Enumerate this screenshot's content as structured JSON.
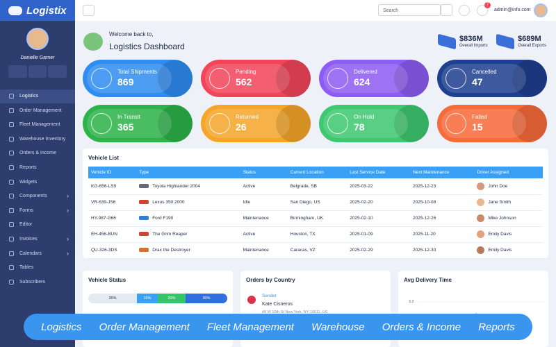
{
  "sidebar": {
    "brand": "Logistix",
    "user": "Danielle Garner",
    "menu": [
      {
        "label": "Logistics",
        "submenu": false
      },
      {
        "label": "Order Management",
        "submenu": false
      },
      {
        "label": "Fleet Management",
        "submenu": false
      },
      {
        "label": "Warehouse Inventory",
        "submenu": false
      },
      {
        "label": "Orders & Income",
        "submenu": false
      },
      {
        "label": "Reports",
        "submenu": false
      },
      {
        "label": "Widgets",
        "submenu": false
      },
      {
        "label": "Components",
        "submenu": true
      },
      {
        "label": "Forms",
        "submenu": true
      },
      {
        "label": "Editor",
        "submenu": false
      },
      {
        "label": "Invoices",
        "submenu": true
      },
      {
        "label": "Calendars",
        "submenu": true
      },
      {
        "label": "Tables",
        "submenu": false
      },
      {
        "label": "Subscribers",
        "submenu": false
      }
    ],
    "active": 0
  },
  "topbar": {
    "search": "Search",
    "notifications": "7",
    "email": "admin@info.com"
  },
  "header": {
    "greeting": "Welcome back to,",
    "title": "Logistics Dashboard",
    "stats": [
      {
        "value": "$836M",
        "label": "Overall Imports"
      },
      {
        "value": "$689M",
        "label": "Overall Exports"
      }
    ]
  },
  "cards": [
    {
      "label": "Total Shipments",
      "value": "869",
      "color": "#2f8cf0"
    },
    {
      "label": "Pending",
      "value": "562",
      "color": "#f2455a"
    },
    {
      "label": "Delivered",
      "value": "624",
      "color": "#8d5cf2"
    },
    {
      "label": "Cancelled",
      "value": "47",
      "color": "#1f3f90"
    },
    {
      "label": "In Transit",
      "value": "365",
      "color": "#2db34a"
    },
    {
      "label": "Returned",
      "value": "26",
      "color": "#f5a62a"
    },
    {
      "label": "On Hold",
      "value": "78",
      "color": "#3ec870"
    },
    {
      "label": "Failed",
      "value": "15",
      "color": "#f76a3a"
    }
  ],
  "vehicle_list": {
    "title": "Vehicle List",
    "columns": [
      "Vehicle ID",
      "Type",
      "Status",
      "Current Location",
      "Last Service Date",
      "Next Maintenance",
      "Driver Assigned"
    ],
    "rows": [
      [
        "KG-656-LS9",
        "Toyota Highlander 2004",
        "Active",
        "Belgrade, SB",
        "2025-03-22",
        "2025-12-23",
        "John Doe"
      ],
      [
        "VR-639-JS6",
        "Lexus 350 2000",
        "Idle",
        "San Diego, US",
        "2025-02-20",
        "2025-10-08",
        "Jane Smith"
      ],
      [
        "HY-987-G66",
        "Ford F190",
        "Maintenance",
        "Birmingham, UK",
        "2025-02-10",
        "2025-12-26",
        "Mike Johnson"
      ],
      [
        "EH-456-BUN",
        "The Grim Reaper",
        "Active",
        "Houston, TX",
        "2025-01-09",
        "2025-11-20",
        "Emily Davis"
      ],
      [
        "QU-326-3DS",
        "Drax the Destroyer",
        "Maintenance",
        "Caracas, VZ",
        "2025-02-29",
        "2025-12-30",
        "Emily Davis"
      ]
    ]
  },
  "vehicle_status": {
    "title": "Vehicle Status",
    "values": [
      35,
      15,
      20,
      30
    ],
    "value_labels": [
      "35%",
      "15%",
      "20%",
      "30%"
    ],
    "colors": [
      "#e4e9f2",
      "#3aa0f5",
      "#34c46a",
      "#2f6fe0"
    ]
  },
  "orders_by_country": {
    "title": "Orders by Country",
    "sender_label": "Sender",
    "sender_name": "Kate Cisneros",
    "address": "#8 W 10th St New York, NY 10011, US"
  },
  "avg_delivery": {
    "title": "Avg Delivery Time",
    "tick": "3.2"
  },
  "banner": [
    "Logistics",
    "Order Management",
    "Fleet Management",
    "Warehouse",
    "Orders & Income",
    "Reports"
  ]
}
